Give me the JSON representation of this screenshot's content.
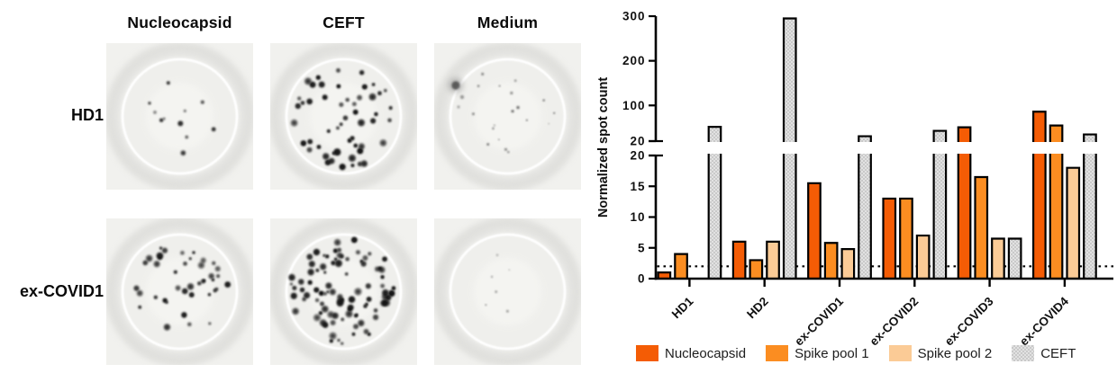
{
  "left_panel": {
    "column_headers": [
      "Nucleocapsid",
      "CEFT",
      "Medium"
    ],
    "row_labels": [
      "HD1",
      "ex-COVID1"
    ],
    "wells": [
      {
        "row": "HD1",
        "column": "Nucleocapsid",
        "spot_count": 11,
        "min_r": 1.6,
        "max_r": 3.2,
        "min_o": 0.3,
        "max_o": 0.8,
        "spread": 0.82,
        "top_bias": false,
        "rim_blob": false,
        "seed": 7
      },
      {
        "row": "HD1",
        "column": "CEFT",
        "spot_count": 52,
        "min_r": 1.8,
        "max_r": 4.2,
        "min_o": 0.45,
        "max_o": 0.95,
        "spread": 1.02,
        "top_bias": false,
        "rim_blob": false,
        "seed": 13
      },
      {
        "row": "HD1",
        "column": "Medium",
        "spot_count": 18,
        "min_r": 0.7,
        "max_r": 1.8,
        "min_o": 0.18,
        "max_o": 0.5,
        "spread": 0.96,
        "top_bias": false,
        "rim_blob": true,
        "seed": 5
      },
      {
        "row": "ex-COVID1",
        "column": "Nucleocapsid",
        "spot_count": 40,
        "min_r": 1.6,
        "max_r": 4.0,
        "min_o": 0.4,
        "max_o": 0.9,
        "spread": 0.95,
        "top_bias": true,
        "rim_blob": false,
        "seed": 21
      },
      {
        "row": "ex-COVID1",
        "column": "CEFT",
        "spot_count": 92,
        "min_r": 1.6,
        "max_r": 4.4,
        "min_o": 0.45,
        "max_o": 0.95,
        "spread": 1.05,
        "top_bias": false,
        "rim_blob": false,
        "seed": 33
      },
      {
        "row": "ex-COVID1",
        "column": "Medium",
        "spot_count": 6,
        "min_r": 0.7,
        "max_r": 1.5,
        "min_o": 0.15,
        "max_o": 0.4,
        "spread": 0.75,
        "top_bias": false,
        "rim_blob": false,
        "seed": 9
      }
    ]
  },
  "chart_data": {
    "type": "bar",
    "title": "",
    "xlabel": "",
    "ylabel": "Normalized spot count",
    "categories": [
      "HD1",
      "HD2",
      "ex-COVID1",
      "ex-COVID2",
      "ex-COVID3",
      "ex-COVID4"
    ],
    "series": [
      {
        "name": "Nucleocapsid",
        "color": "#f45c05",
        "values": [
          1,
          6,
          15.5,
          13,
          51,
          86
        ]
      },
      {
        "name": "Spike pool 1",
        "color": "#fb8d21",
        "values": [
          4,
          3,
          5.8,
          13,
          16.5,
          55
        ]
      },
      {
        "name": "Spike pool 2",
        "color": "#fbcb96",
        "values": [
          null,
          6,
          4.8,
          7,
          6.5,
          18
        ]
      },
      {
        "name": "CEFT",
        "color": "#dcdcdc",
        "pattern": "checker",
        "pattern_color": "#c9c9c9",
        "values": [
          52,
          295,
          31,
          43,
          6.5,
          35
        ]
      }
    ],
    "bar_outline_color": "#000000",
    "y_axis": {
      "broken": true,
      "lower_range": [
        0,
        20
      ],
      "lower_ticks": [
        "0",
        "5",
        "10",
        "15",
        "20"
      ],
      "upper_range": [
        20,
        300
      ],
      "upper_ticks": [
        "20",
        "100",
        "200",
        "300"
      ]
    },
    "threshold_line": {
      "value": 2,
      "style": "dotted",
      "color": "#000000"
    },
    "grid": false,
    "legend_position": "bottom"
  }
}
